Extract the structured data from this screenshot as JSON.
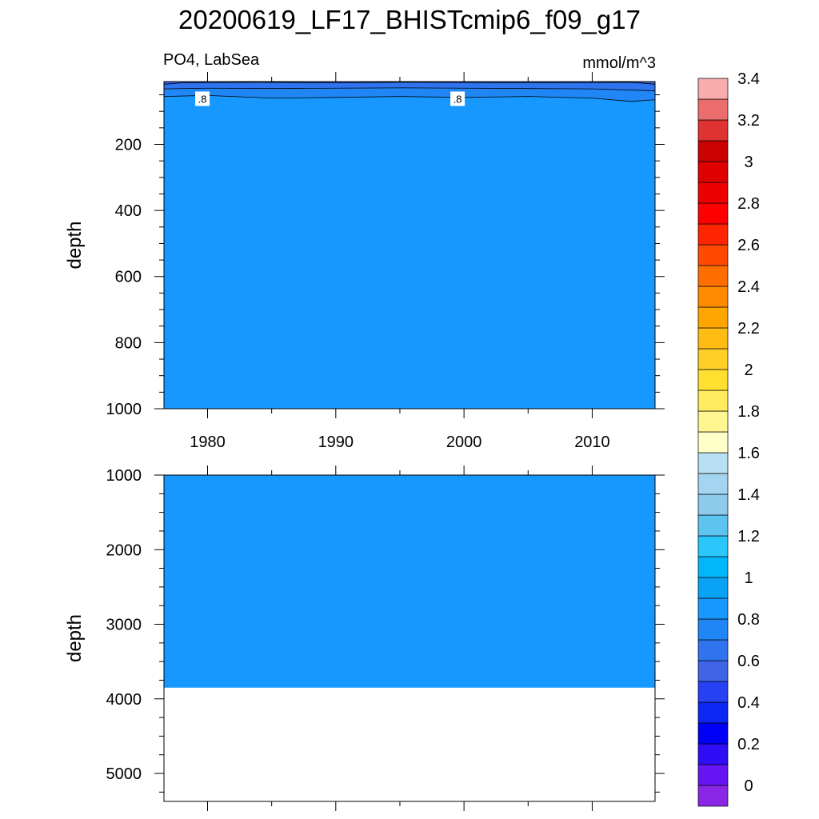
{
  "title": "20200619_LF17_BHISTcmip6_f09_g17",
  "subtitle_left": "PO4, LabSea",
  "subtitle_right": "mmol/m^3",
  "chart_data": [
    {
      "type": "heatmap",
      "panel": "upper",
      "ylabel": "depth",
      "x_ticks": [
        "1980",
        "1990",
        "2000",
        "2010"
      ],
      "x_tick_values": [
        1980,
        1990,
        2000,
        2010
      ],
      "xlim": [
        1976.6,
        2014.9
      ],
      "y_ticks": [
        "200",
        "400",
        "600",
        "800",
        "1000"
      ],
      "y_tick_values": [
        200,
        400,
        600,
        800,
        1000
      ],
      "ylim": [
        10,
        1000
      ],
      "y_inverted": true,
      "fill_below_contours": "0.8-0.9 band (#1798FF)",
      "contour_lines": [
        {
          "level": 0.6,
          "depths": [
            [
              1976.6,
              18
            ],
            [
              1978,
              14
            ],
            [
              1980,
              13
            ],
            [
              1984,
              12
            ],
            [
              1990,
              14
            ],
            [
              1995,
              12
            ],
            [
              2000,
              13
            ],
            [
              2005,
              14
            ],
            [
              2010,
              13
            ],
            [
              2013,
              12
            ],
            [
              2014.9,
              18
            ]
          ]
        },
        {
          "level": 0.7,
          "depths": [
            [
              1976.6,
              32
            ],
            [
              1980,
              30
            ],
            [
              1985,
              31
            ],
            [
              1990,
              30
            ],
            [
              1995,
              29
            ],
            [
              2000,
              30
            ],
            [
              2005,
              31
            ],
            [
              2010,
              32
            ],
            [
              2014.9,
              38
            ]
          ]
        },
        {
          "level": 0.8,
          "depths": [
            [
              1976.6,
              55
            ],
            [
              1980,
              52
            ],
            [
              1985,
              60
            ],
            [
              1990,
              58
            ],
            [
              1995,
              55
            ],
            [
              2000,
              58
            ],
            [
              2005,
              55
            ],
            [
              2010,
              60
            ],
            [
              2013,
              70
            ],
            [
              2014.9,
              65
            ]
          ]
        }
      ],
      "contour_labels": [
        {
          "text": ".8",
          "x": 1979.6,
          "depth": 45
        },
        {
          "text": ".8",
          "x": 1999.5,
          "depth": 45
        }
      ]
    },
    {
      "type": "heatmap",
      "panel": "lower",
      "ylabel": "depth",
      "x_ticks": [
        "1980",
        "1990",
        "2000",
        "2010"
      ],
      "x_tick_values": [
        1980,
        1990,
        2000,
        2010
      ],
      "xlim": [
        1976.6,
        2014.9
      ],
      "y_ticks": [
        "1000",
        "2000",
        "3000",
        "4000",
        "5000"
      ],
      "y_tick_values": [
        1000,
        2000,
        3000,
        4000,
        5000
      ],
      "ylim": [
        1000,
        5375
      ],
      "y_inverted": true,
      "filled_to_depth": 3850,
      "fill_value": "0.8-0.9 band (#1798FF)",
      "below_fill": "missing (white)"
    }
  ],
  "colorbar": {
    "labels": [
      "0",
      "0.2",
      "0.4",
      "0.6",
      "0.8",
      "1",
      "1.2",
      "1.4",
      "1.6",
      "1.8",
      "2",
      "2.2",
      "2.4",
      "2.6",
      "2.8",
      "3",
      "3.2",
      "3.4"
    ],
    "label_values": [
      0,
      0.2,
      0.4,
      0.6,
      0.8,
      1.0,
      1.2,
      1.4,
      1.6,
      1.8,
      2.0,
      2.2,
      2.4,
      2.6,
      2.8,
      3.0,
      3.2,
      3.4
    ],
    "levels_min": -0.1,
    "levels_step": 0.1,
    "colors": [
      "#8A26E6",
      "#6516F2",
      "#2F0DF5",
      "#0000F6",
      "#0C26F4",
      "#2742F4",
      "#3F64E7",
      "#2F74EE",
      "#2186F5",
      "#1798FF",
      "#08A3F5",
      "#01B7FA",
      "#2AC7FB",
      "#5DC4F1",
      "#8DCAEB",
      "#A4D5F0",
      "#B9DFF2",
      "#FFFFC8",
      "#FFF591",
      "#FFEB5E",
      "#FFDF30",
      "#FFCF28",
      "#FFBD14",
      "#FFA500",
      "#FF8A00",
      "#FF6E00",
      "#FF4900",
      "#FF2500",
      "#FF0000",
      "#EF0000",
      "#DF0000",
      "#CB0000",
      "#DE3331",
      "#EC6D6D",
      "#F8ACAC"
    ]
  }
}
